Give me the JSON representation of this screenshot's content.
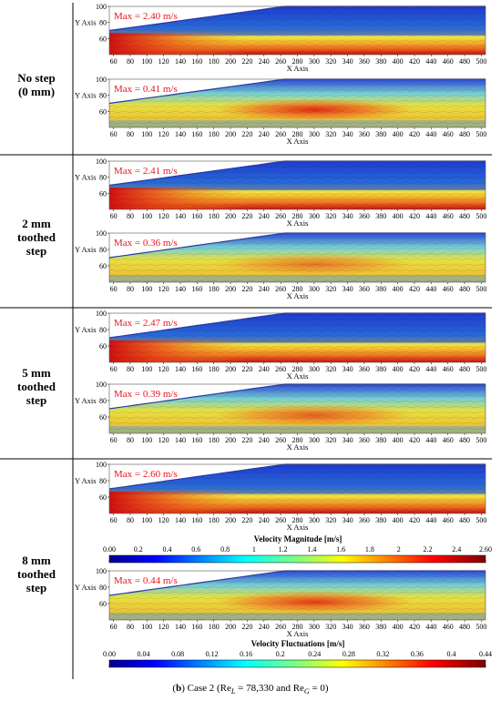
{
  "rows": [
    {
      "label_lines": [
        "No step",
        "(0 mm)"
      ],
      "magnitude_max": "Max = 2.40 m/s",
      "fluctuation_max": "Max = 0.41 m/s"
    },
    {
      "label_lines": [
        "2 mm",
        "toothed",
        "step"
      ],
      "magnitude_max": "Max = 2.41 m/s",
      "fluctuation_max": "Max = 0.36 m/s"
    },
    {
      "label_lines": [
        "5 mm",
        "toothed",
        "step"
      ],
      "magnitude_max": "Max = 2.47 m/s",
      "fluctuation_max": "Max = 0.39 m/s"
    },
    {
      "label_lines": [
        "8 mm",
        "toothed",
        "step"
      ],
      "magnitude_max": "Max = 2.60 m/s",
      "fluctuation_max": "Max = 0.44 m/s"
    }
  ],
  "axes": {
    "x_label": "X Axis",
    "y_label": "Y Axis",
    "x_ticks": [
      "60",
      "80",
      "100",
      "120",
      "140",
      "160",
      "180",
      "200",
      "220",
      "240",
      "260",
      "280",
      "300",
      "320",
      "340",
      "360",
      "380",
      "400",
      "420",
      "440",
      "460",
      "480",
      "500"
    ],
    "y_ticks": [
      "100",
      "80",
      "60"
    ],
    "x_range": [
      55,
      505
    ],
    "y_range": [
      40,
      100
    ]
  },
  "colorbars": {
    "magnitude": {
      "title": "Velocity Magnitude [m/s]",
      "ticks": [
        "0.00",
        "0.2",
        "0.4",
        "0.6",
        "0.8",
        "1",
        "1.2",
        "1.4",
        "1.6",
        "1.8",
        "2",
        "2.2",
        "2.4",
        "2.60"
      ],
      "range": [
        0,
        2.6
      ]
    },
    "fluctuation": {
      "title": "Velocity Fluctuations [m/s]",
      "ticks": [
        "0.00",
        "0.04",
        "0.08",
        "0.12",
        "0.16",
        "0.2",
        "0.24",
        "0.28",
        "0.32",
        "0.36",
        "0.4",
        "0.44"
      ],
      "range": [
        0,
        0.44
      ]
    }
  },
  "caption": {
    "prefix": "(",
    "letter": "b",
    "text": ") Case 2 (Re",
    "sub1": "L",
    "mid": " = 78,330 and Re",
    "sub2": "G",
    "end": " = 0)"
  },
  "colors": {
    "max_text": "#e8141e",
    "wall": "#2a3aa0",
    "divider": "#000000"
  }
}
